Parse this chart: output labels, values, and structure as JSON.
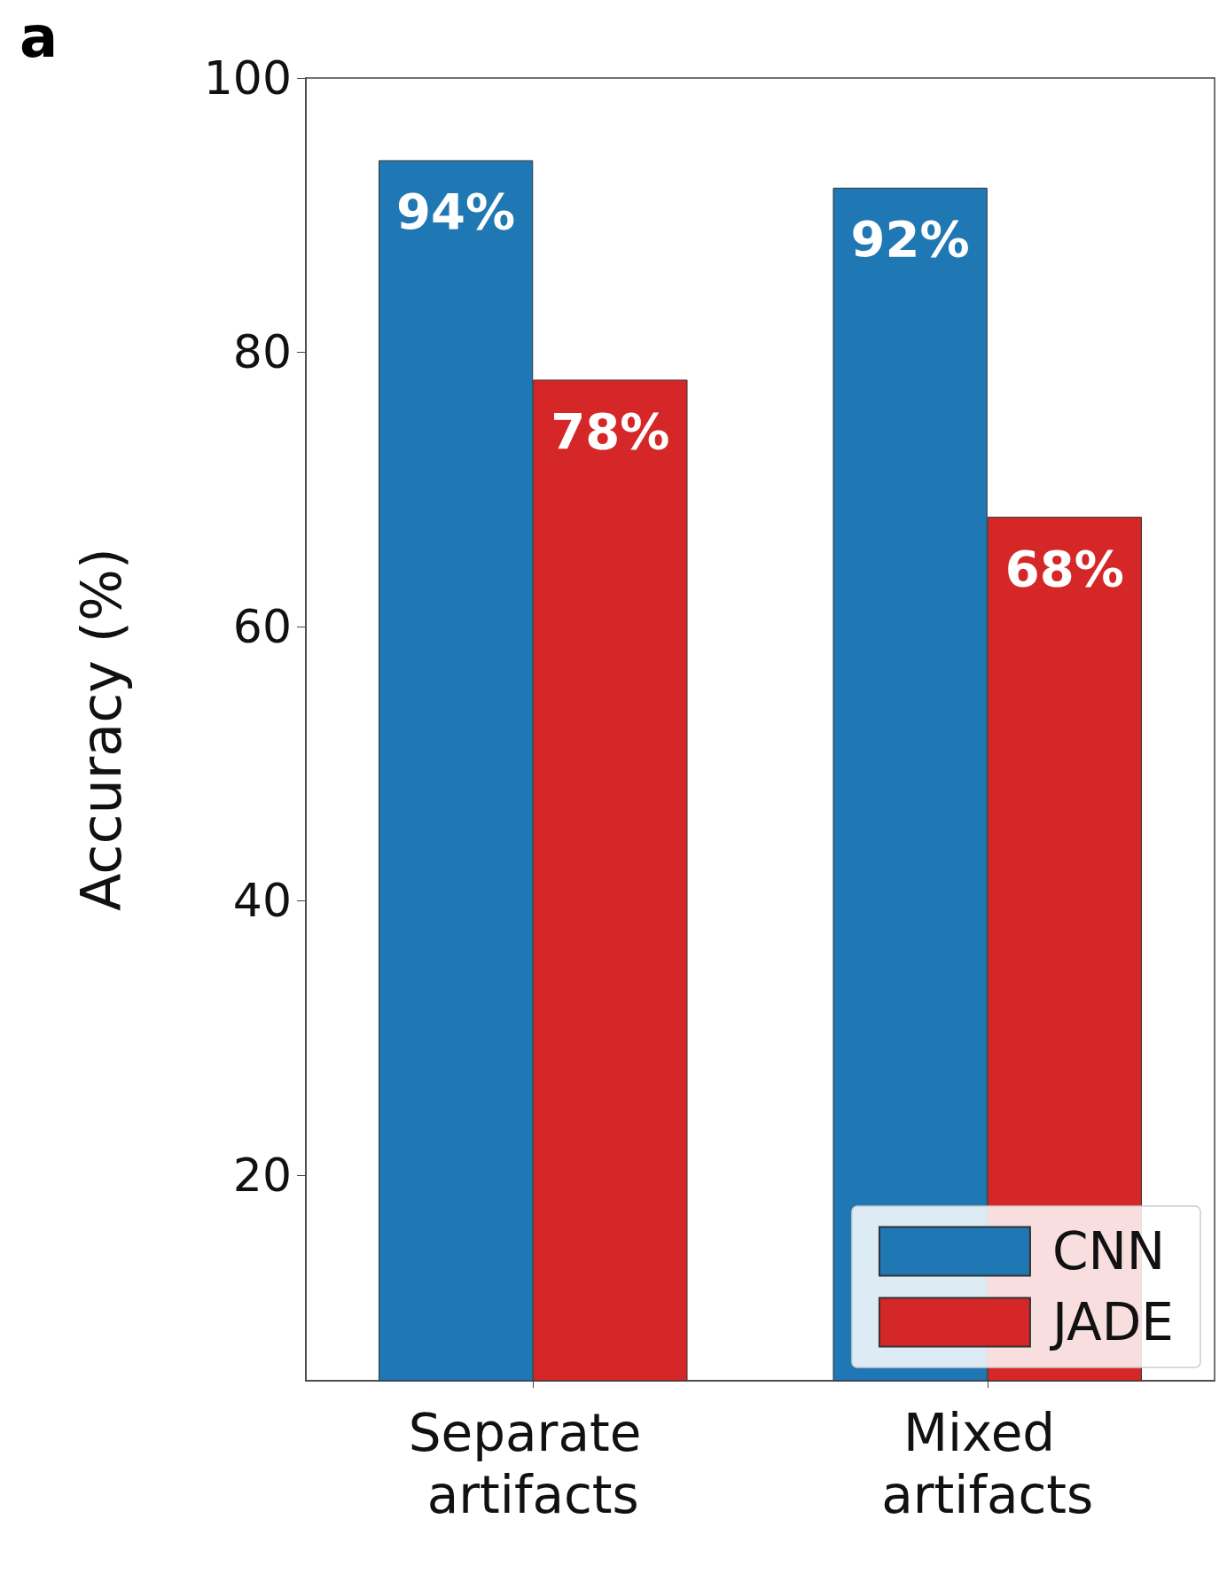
{
  "chart_data": {
    "type": "bar",
    "ylabel": "Accuracy (%)",
    "categories": [
      "Separate artifacts",
      "Mixed artifacts"
    ],
    "series": [
      {
        "name": "CNN",
        "color": "#1f77b4",
        "values": [
          94,
          92
        ],
        "value_labels": [
          "94%",
          "92%"
        ]
      },
      {
        "name": "JADE",
        "color": "#d62728",
        "values": [
          78,
          68
        ],
        "value_labels": [
          "78%",
          "68%"
        ]
      }
    ],
    "ylim": [
      5,
      100
    ],
    "yticks": [
      20,
      40,
      60,
      80,
      100
    ],
    "grid": false,
    "legend": "bottom right",
    "annotations": [
      "a"
    ]
  }
}
